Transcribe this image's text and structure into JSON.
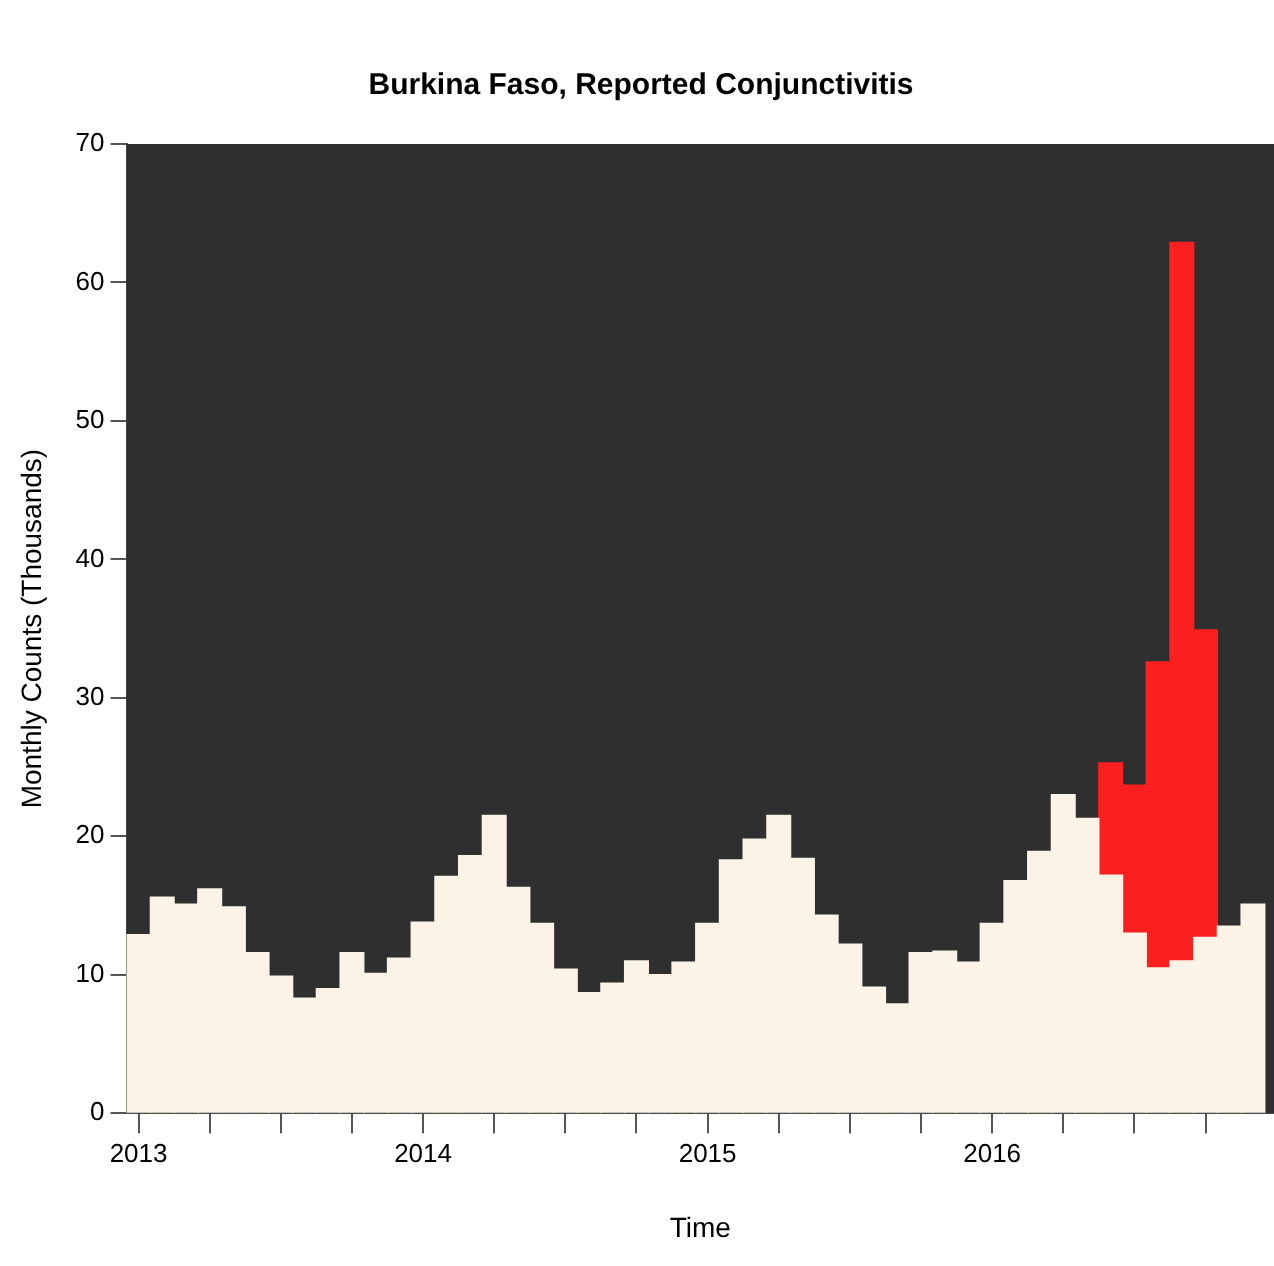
{
  "chart_data": {
    "type": "bar",
    "stacked": true,
    "title": "Burkina Faso, Reported Conjunctivitis",
    "xlabel": "Time",
    "ylabel": "Monthly Counts (Thousands)",
    "x": [
      "2013-01",
      "2013-02",
      "2013-03",
      "2013-04",
      "2013-05",
      "2013-06",
      "2013-07",
      "2013-08",
      "2013-09",
      "2013-10",
      "2013-11",
      "2013-12",
      "2014-01",
      "2014-02",
      "2014-03",
      "2014-04",
      "2014-05",
      "2014-06",
      "2014-07",
      "2014-08",
      "2014-09",
      "2014-10",
      "2014-11",
      "2014-12",
      "2015-01",
      "2015-02",
      "2015-03",
      "2015-04",
      "2015-05",
      "2015-06",
      "2015-07",
      "2015-08",
      "2015-09",
      "2015-10",
      "2015-11",
      "2015-12",
      "2016-01",
      "2016-02",
      "2016-03",
      "2016-04",
      "2016-05",
      "2016-06",
      "2016-07",
      "2016-08",
      "2016-09",
      "2016-10",
      "2016-11",
      "2016-12"
    ],
    "series": [
      {
        "color": "#faf3e6",
        "values": [
          12.9,
          15.6,
          15.1,
          16.2,
          14.9,
          11.6,
          9.9,
          8.3,
          9.0,
          11.6,
          10.1,
          11.2,
          13.8,
          17.1,
          18.6,
          21.5,
          16.3,
          13.7,
          10.4,
          8.7,
          9.4,
          11.0,
          10.0,
          10.9,
          13.7,
          18.3,
          19.8,
          21.5,
          18.4,
          14.3,
          12.2,
          9.1,
          7.9,
          11.6,
          11.7,
          10.9,
          13.7,
          16.8,
          18.9,
          23.0,
          21.3,
          17.2,
          13.0,
          10.5,
          11.0,
          12.7,
          13.5,
          15.1
        ]
      },
      {
        "color": "#fc1f1f",
        "values": [
          null,
          null,
          null,
          null,
          null,
          null,
          null,
          null,
          null,
          null,
          null,
          null,
          null,
          null,
          null,
          null,
          null,
          null,
          null,
          null,
          null,
          null,
          null,
          null,
          null,
          null,
          null,
          null,
          null,
          null,
          null,
          null,
          null,
          null,
          null,
          null,
          null,
          null,
          null,
          null,
          null,
          8.1,
          10.7,
          22.1,
          51.9,
          22.2,
          null,
          null
        ]
      }
    ],
    "xlim": [
      "2012-12-16",
      "2016-12-28"
    ],
    "xticks": [
      {
        "value": "2013-01",
        "label": "2013"
      },
      {
        "value": "2013-04",
        "label": null
      },
      {
        "value": "2013-07",
        "label": null
      },
      {
        "value": "2013-10",
        "label": null
      },
      {
        "value": "2014-01",
        "label": "2014"
      },
      {
        "value": "2014-04",
        "label": null
      },
      {
        "value": "2014-07",
        "label": null
      },
      {
        "value": "2014-10",
        "label": null
      },
      {
        "value": "2015-01",
        "label": "2015"
      },
      {
        "value": "2015-04",
        "label": null
      },
      {
        "value": "2015-07",
        "label": null
      },
      {
        "value": "2015-10",
        "label": null
      },
      {
        "value": "2016-01",
        "label": "2016"
      },
      {
        "value": "2016-04",
        "label": null
      },
      {
        "value": "2016-07",
        "label": null
      },
      {
        "value": "2016-10",
        "label": null
      }
    ],
    "ylim": [
      0,
      70
    ],
    "yticks": [
      0,
      10,
      20,
      30,
      40,
      50,
      60,
      70
    ],
    "grid": false,
    "legend": false
  }
}
